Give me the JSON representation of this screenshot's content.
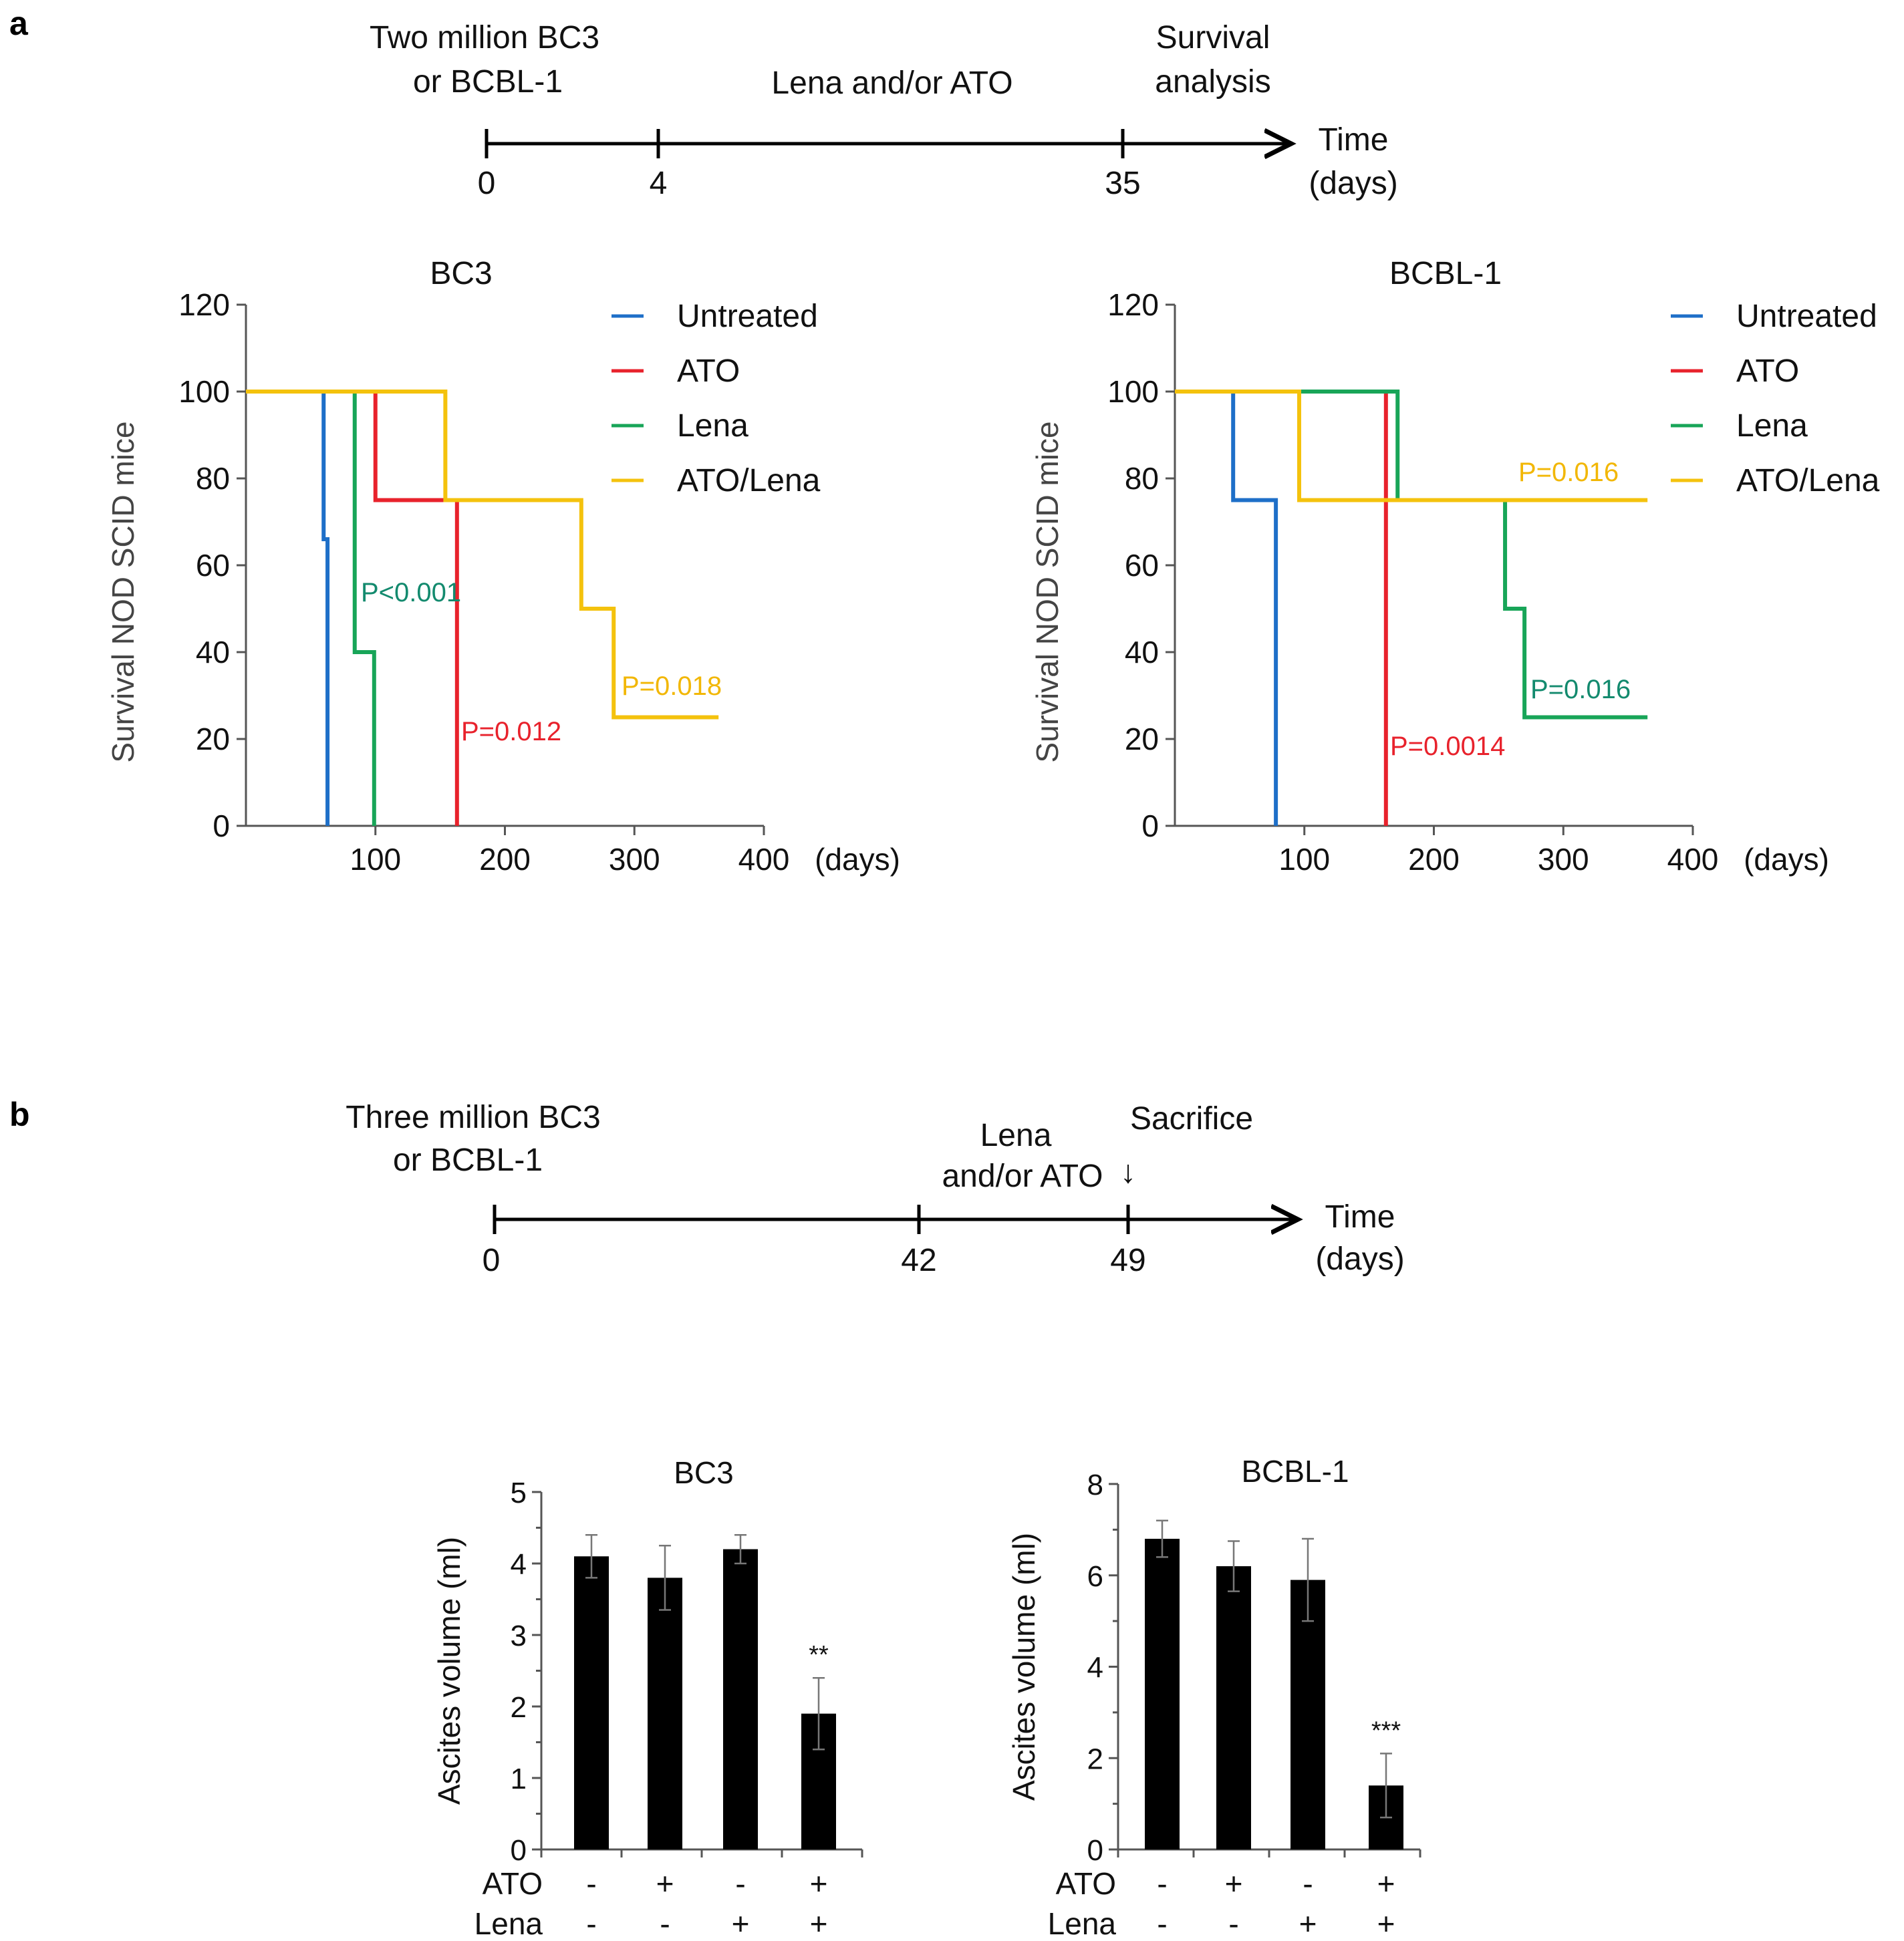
{
  "figure": {
    "panel_a_label": "a",
    "panel_b_label": "b"
  },
  "timeline_a": {
    "left_label": [
      "Two million BC3",
      "or BCBL-1"
    ],
    "middle_label": "Lena and/or ATO",
    "right_label": [
      "Survival",
      "analysis"
    ],
    "ticks": [
      "0",
      "4",
      "35"
    ],
    "axis_label": [
      "Time",
      "(days)"
    ]
  },
  "timeline_b": {
    "left_label": [
      "Three  million BC3",
      "or BCBL-1"
    ],
    "middle_label": [
      "Lena",
      "and/or ATO"
    ],
    "right_label": "Sacrifice",
    "arrow_glyph": "↓",
    "ticks": [
      "0",
      "42",
      "49"
    ],
    "axis_label": [
      "Time",
      "(days)"
    ]
  },
  "colors": {
    "Untreated": "#1e6fc8",
    "ATO": "#e8222c",
    "Lena": "#18a558",
    "ATO/Lena": "#f4c20d",
    "p_lena_text": "#138a6e",
    "p_ato_text": "#e8222c",
    "p_combo_text": "#f2b705",
    "bar": "#000000"
  },
  "chart_data": [
    {
      "type": "line",
      "subtype": "kaplan-meier step",
      "title": "BC3",
      "ylabel": "Survival NOD SCID mice",
      "xlabel": "(days)",
      "xlim": [
        0,
        400
      ],
      "ylim": [
        0,
        120
      ],
      "xticks": [
        "100",
        "200",
        "300",
        "400"
      ],
      "yticks": [
        "0",
        "20",
        "40",
        "60",
        "80",
        "100",
        "120"
      ],
      "legend": [
        "Untreated",
        "ATO",
        "Lena",
        "ATO/Lena"
      ],
      "legend_position": "top-right",
      "series": [
        {
          "name": "Untreated",
          "points": [
            [
              0,
              100
            ],
            [
              60,
              100
            ],
            [
              60,
              66
            ],
            [
              63,
              66
            ],
            [
              63,
              0
            ]
          ]
        },
        {
          "name": "ATO",
          "points": [
            [
              0,
              100
            ],
            [
              100,
              100
            ],
            [
              100,
              75
            ],
            [
              163,
              75
            ],
            [
              163,
              0
            ]
          ]
        },
        {
          "name": "Lena",
          "points": [
            [
              0,
              100
            ],
            [
              84,
              100
            ],
            [
              84,
              40
            ],
            [
              99,
              40
            ],
            [
              99,
              0
            ]
          ]
        },
        {
          "name": "ATO/Lena",
          "points": [
            [
              0,
              100
            ],
            [
              154,
              100
            ],
            [
              154,
              75
            ],
            [
              259,
              75
            ],
            [
              259,
              50
            ],
            [
              284,
              50
            ],
            [
              284,
              25
            ],
            [
              365,
              25
            ]
          ]
        }
      ],
      "annotations": [
        {
          "text": "P<0.001",
          "series": "Lena",
          "x": 90,
          "y": 52
        },
        {
          "text": "P=0.012",
          "series": "ATO",
          "x": 166,
          "y": 19
        },
        {
          "text": "P=0.018",
          "series": "ATO/Lena",
          "x": 286,
          "y": 30
        }
      ]
    },
    {
      "type": "line",
      "subtype": "kaplan-meier step",
      "title": "BCBL-1",
      "ylabel": "Survival NOD SCID mice",
      "xlabel": "(days)",
      "xlim": [
        0,
        400
      ],
      "ylim": [
        0,
        120
      ],
      "xticks": [
        "100",
        "200",
        "300",
        "400"
      ],
      "yticks": [
        "0",
        "20",
        "40",
        "60",
        "80",
        "100",
        "120"
      ],
      "legend": [
        "Untreated",
        "ATO",
        "Lena",
        "ATO/Lena"
      ],
      "legend_position": "top-right",
      "series": [
        {
          "name": "Untreated",
          "points": [
            [
              0,
              100
            ],
            [
              45,
              100
            ],
            [
              45,
              75
            ],
            [
              78,
              75
            ],
            [
              78,
              0
            ]
          ]
        },
        {
          "name": "ATO",
          "points": [
            [
              0,
              100
            ],
            [
              163,
              100
            ],
            [
              163,
              0
            ]
          ]
        },
        {
          "name": "Lena",
          "points": [
            [
              0,
              100
            ],
            [
              172,
              100
            ],
            [
              172,
              75
            ],
            [
              255,
              75
            ],
            [
              255,
              50
            ],
            [
              270,
              50
            ],
            [
              270,
              25
            ],
            [
              365,
              25
            ]
          ]
        },
        {
          "name": "ATO/Lena",
          "points": [
            [
              0,
              100
            ],
            [
              96,
              100
            ],
            [
              96,
              75
            ],
            [
              365,
              75
            ]
          ]
        }
      ],
      "annotations": [
        {
          "text": "P=0.016",
          "series": "ATO/Lena",
          "x": 265,
          "y": 80
        },
        {
          "text": "P=0.016",
          "series": "Lena",
          "x": 273,
          "y": 30
        },
        {
          "text": "P=0.0014",
          "series": "ATO",
          "x": 166,
          "y": 14
        }
      ]
    },
    {
      "type": "bar",
      "title": "BC3",
      "ylabel": "Ascites volume (ml)",
      "ylim": [
        0,
        5
      ],
      "yticks": [
        "0",
        "1",
        "2",
        "3",
        "4",
        "5"
      ],
      "categories": [
        "1",
        "2",
        "3",
        "4"
      ],
      "values": [
        4.1,
        3.8,
        4.2,
        1.9
      ],
      "errors": [
        0.3,
        0.45,
        0.2,
        0.5
      ],
      "significance": [
        "",
        "",
        "",
        "**"
      ],
      "treatment_rows": [
        {
          "name": "ATO",
          "marks": [
            "-",
            "+",
            "-",
            "+"
          ]
        },
        {
          "name": "Lena",
          "marks": [
            "-",
            "-",
            "+",
            "+"
          ]
        }
      ]
    },
    {
      "type": "bar",
      "title": "BCBL-1",
      "ylabel": "Ascites volume (ml)",
      "ylim": [
        0,
        8
      ],
      "yticks": [
        "0",
        "2",
        "4",
        "6",
        "8"
      ],
      "categories": [
        "1",
        "2",
        "3",
        "4"
      ],
      "values": [
        6.8,
        6.2,
        5.9,
        1.4
      ],
      "errors": [
        0.4,
        0.55,
        0.9,
        0.7
      ],
      "significance": [
        "",
        "",
        "",
        "***"
      ],
      "treatment_rows": [
        {
          "name": "ATO",
          "marks": [
            "-",
            "+",
            "-",
            "+"
          ]
        },
        {
          "name": "Lena",
          "marks": [
            "-",
            "-",
            "+",
            "+"
          ]
        }
      ]
    }
  ]
}
